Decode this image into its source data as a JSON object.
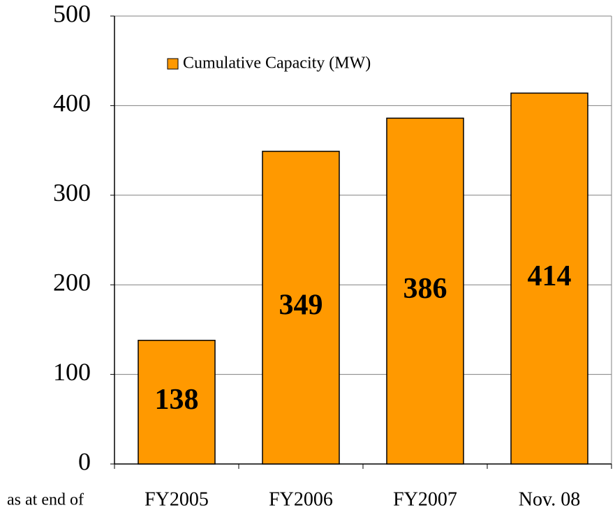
{
  "chart_data": {
    "type": "bar",
    "categories": [
      "FY2005",
      "FY2006",
      "FY2007",
      "Nov. 08"
    ],
    "series": [
      {
        "name": "Cumulative Capacity (MW)",
        "color": "#ff9900",
        "values": [
          138,
          349,
          386,
          414
        ]
      }
    ],
    "annotation": "as at end of",
    "ylim": [
      0,
      500
    ],
    "yticks": [
      0,
      100,
      200,
      300,
      400,
      500
    ],
    "grid": true
  }
}
